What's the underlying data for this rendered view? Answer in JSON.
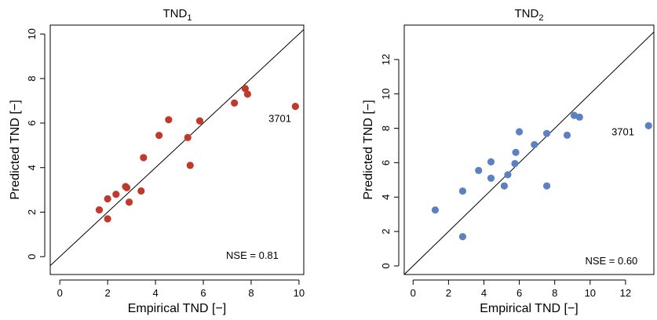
{
  "chart_data": [
    {
      "type": "scatter",
      "title": "TND",
      "title_subscript": "1",
      "xlabel": "Empirical TND [−]",
      "ylabel": "Predicted TND [−]",
      "xlim": [
        -0.4,
        10.2
      ],
      "ylim": [
        -0.8,
        10.4
      ],
      "xticks": [
        0,
        2,
        4,
        6,
        8,
        10
      ],
      "yticks": [
        0,
        2,
        4,
        6,
        8,
        10
      ],
      "color": "#c0392b",
      "reference_line": "1:1",
      "annotations": [
        {
          "text": "3701",
          "x": 9.2,
          "y": 6.05
        },
        {
          "text": "NSE = 0.81",
          "x": 8.05,
          "y": -0.1
        }
      ],
      "points": [
        {
          "x": 1.65,
          "y": 2.1
        },
        {
          "x": 2.0,
          "y": 1.7
        },
        {
          "x": 2.0,
          "y": 2.6
        },
        {
          "x": 2.35,
          "y": 2.8
        },
        {
          "x": 2.75,
          "y": 3.15
        },
        {
          "x": 2.8,
          "y": 3.1
        },
        {
          "x": 2.9,
          "y": 2.45
        },
        {
          "x": 3.4,
          "y": 2.95
        },
        {
          "x": 3.5,
          "y": 4.45
        },
        {
          "x": 4.15,
          "y": 5.45
        },
        {
          "x": 4.55,
          "y": 6.15
        },
        {
          "x": 5.35,
          "y": 5.35
        },
        {
          "x": 5.45,
          "y": 4.1
        },
        {
          "x": 5.85,
          "y": 6.1
        },
        {
          "x": 7.3,
          "y": 6.9
        },
        {
          "x": 7.75,
          "y": 7.55
        },
        {
          "x": 7.85,
          "y": 7.3
        },
        {
          "x": 9.85,
          "y": 6.75
        }
      ]
    },
    {
      "type": "scatter",
      "title": "TND",
      "title_subscript": "2",
      "xlabel": "Empirical TND [−]",
      "ylabel": "Predicted TND [−]",
      "xlim": [
        -0.5,
        13.6
      ],
      "ylim": [
        -0.5,
        14.0
      ],
      "xticks": [
        0,
        2,
        4,
        6,
        8,
        10,
        12
      ],
      "yticks": [
        0,
        2,
        4,
        6,
        8,
        10,
        12
      ],
      "color": "#5b80c4",
      "reference_line": "1:1",
      "annotations": [
        {
          "text": "3701",
          "x": 11.85,
          "y": 7.6
        },
        {
          "text": "NSE = 0.60",
          "x": 11.2,
          "y": 0.1
        }
      ],
      "points": [
        {
          "x": 1.25,
          "y": 3.25
        },
        {
          "x": 2.8,
          "y": 4.35
        },
        {
          "x": 2.8,
          "y": 1.7
        },
        {
          "x": 3.7,
          "y": 5.55
        },
        {
          "x": 4.4,
          "y": 6.05
        },
        {
          "x": 4.4,
          "y": 5.1
        },
        {
          "x": 5.15,
          "y": 4.65
        },
        {
          "x": 5.35,
          "y": 5.3
        },
        {
          "x": 5.75,
          "y": 5.95
        },
        {
          "x": 5.8,
          "y": 6.6
        },
        {
          "x": 6.0,
          "y": 7.8
        },
        {
          "x": 6.85,
          "y": 7.05
        },
        {
          "x": 7.55,
          "y": 7.7
        },
        {
          "x": 7.55,
          "y": 4.65
        },
        {
          "x": 8.7,
          "y": 7.6
        },
        {
          "x": 9.1,
          "y": 8.75
        },
        {
          "x": 9.4,
          "y": 8.65
        },
        {
          "x": 13.3,
          "y": 8.15
        }
      ]
    }
  ]
}
